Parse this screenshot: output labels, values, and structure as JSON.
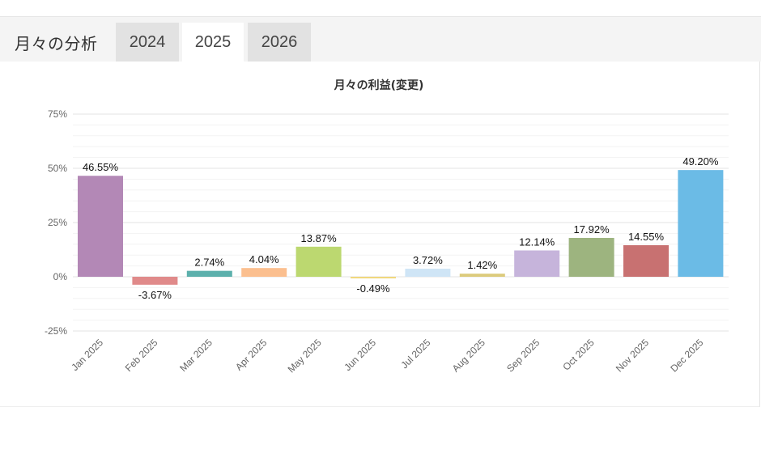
{
  "section_title": "月々の分析",
  "tabs": [
    {
      "label": "2024",
      "active": false
    },
    {
      "label": "2025",
      "active": true
    },
    {
      "label": "2026",
      "active": false
    }
  ],
  "chart_data": {
    "type": "bar",
    "title": "月々の利益(変更)",
    "xlabel": "",
    "ylabel": "",
    "ylim": [
      -25,
      75
    ],
    "y_ticks": [
      "75%",
      "50%",
      "25%",
      "0%",
      "-25%"
    ],
    "y_tick_values": [
      75,
      50,
      25,
      0,
      -25
    ],
    "grid": true,
    "categories": [
      "Jan 2025",
      "Feb 2025",
      "Mar 2025",
      "Apr 2025",
      "May 2025",
      "Jun 2025",
      "Jul 2025",
      "Aug 2025",
      "Sep 2025",
      "Oct 2025",
      "Nov 2025",
      "Dec 2025"
    ],
    "values": [
      46.55,
      -3.67,
      2.74,
      4.04,
      13.87,
      -0.49,
      3.72,
      1.42,
      12.14,
      17.92,
      14.55,
      49.2
    ],
    "labels": [
      "46.55%",
      "-3.67%",
      "2.74%",
      "4.04%",
      "13.87%",
      "-0.49%",
      "3.72%",
      "1.42%",
      "12.14%",
      "17.92%",
      "14.55%",
      "49.20%"
    ],
    "colors": [
      "#b388b6",
      "#e08a8a",
      "#5cb0ac",
      "#fbbf8f",
      "#bcd870",
      "#f1d87e",
      "#cfe5f6",
      "#dccb7c",
      "#c6b4db",
      "#9db47f",
      "#c87171",
      "#6bbbe6"
    ]
  }
}
